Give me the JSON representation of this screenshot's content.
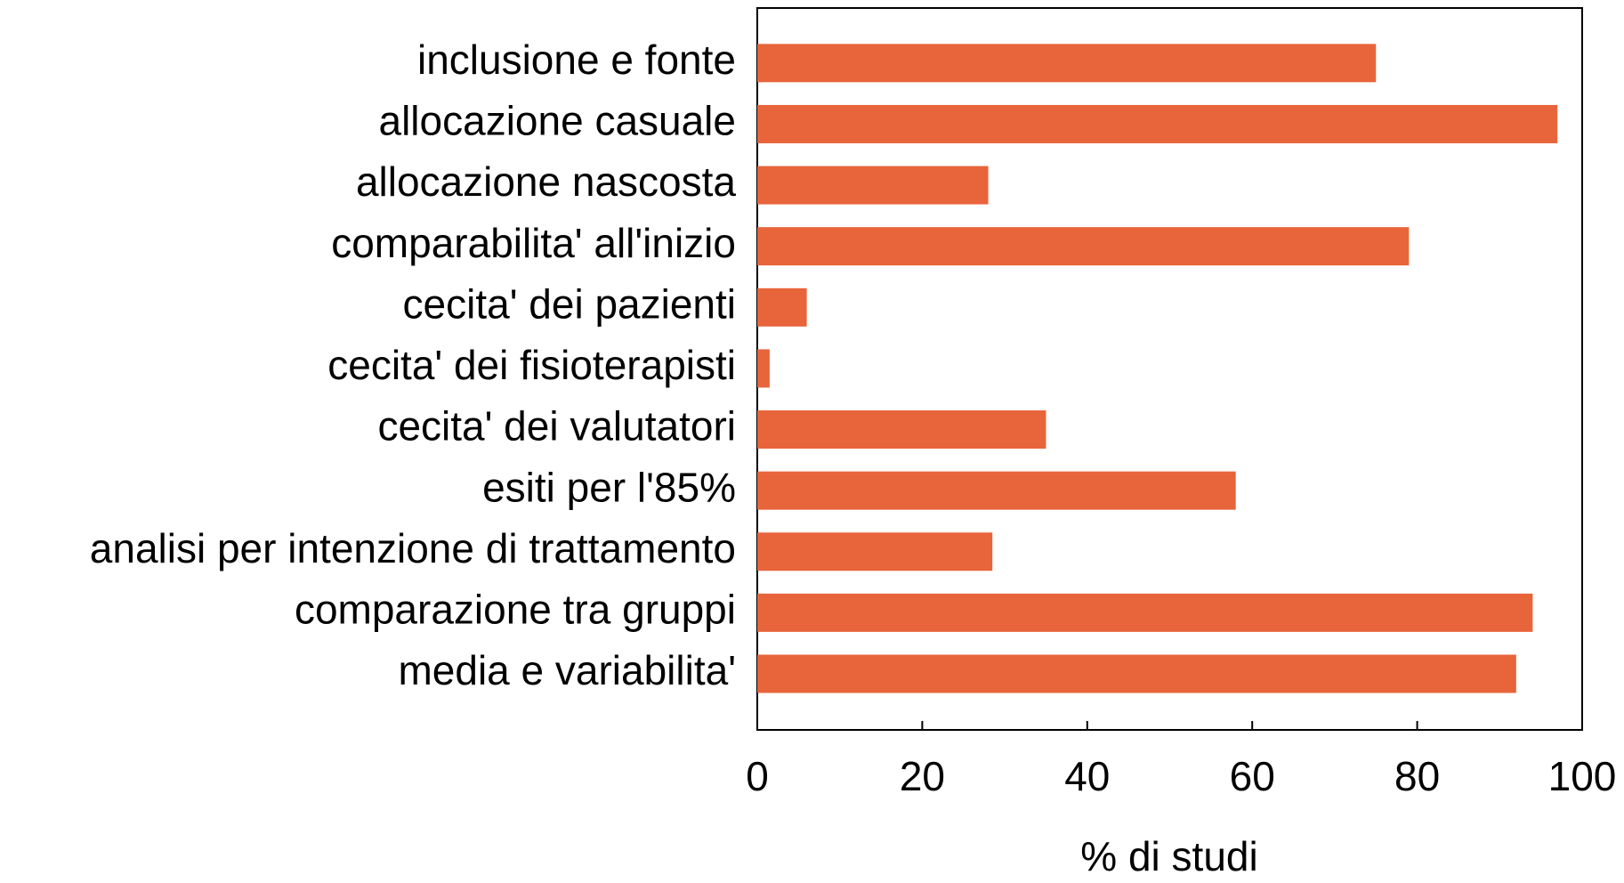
{
  "chart_data": {
    "type": "hbar",
    "categories": [
      "inclusione e fonte",
      "allocazione casuale",
      "allocazione nascosta",
      "comparabilita' all'inizio",
      "cecita' dei pazienti",
      "cecita' dei fisioterapisti",
      "cecita' dei valutatori",
      "esiti per l'85%",
      "analisi per intenzione di trattamento",
      "comparazione tra gruppi",
      "media e variabilita'"
    ],
    "values": [
      75,
      97,
      28,
      79,
      6,
      1.5,
      35,
      58,
      28.5,
      94,
      92
    ],
    "color": "#e8643a",
    "xlabel": "% di studi",
    "xlim": [
      0,
      100
    ],
    "xticks": [
      0,
      20,
      40,
      60,
      80,
      100
    ],
    "grid": false
  }
}
